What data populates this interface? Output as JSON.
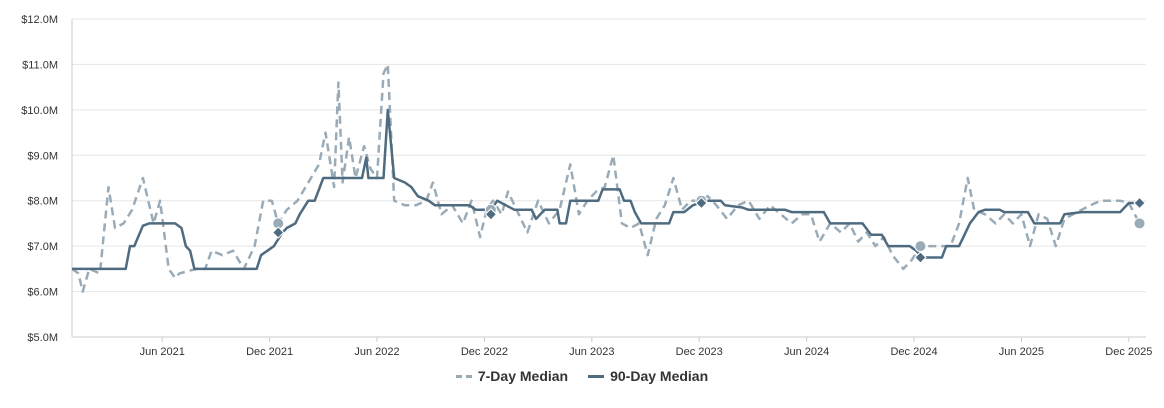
{
  "chart_data": {
    "type": "line",
    "title": "",
    "xlabel": "",
    "ylabel": "",
    "ylim": [
      5.0,
      12.0
    ],
    "xlim": [
      2021.0,
      2026.0
    ],
    "y_ticks": [
      {
        "value": 5,
        "label": "$5.0M"
      },
      {
        "value": 6,
        "label": "$6.0M"
      },
      {
        "value": 7,
        "label": "$7.0M"
      },
      {
        "value": 8,
        "label": "$8.0M"
      },
      {
        "value": 9,
        "label": "$9.0M"
      },
      {
        "value": 10,
        "label": "$10.0M"
      },
      {
        "value": 11,
        "label": "$11.0M"
      },
      {
        "value": 12,
        "label": "$12.0M"
      }
    ],
    "x_ticks": [
      {
        "value": 2021.42,
        "label": "Jun 2021"
      },
      {
        "value": 2021.92,
        "label": "Dec 2021"
      },
      {
        "value": 2022.42,
        "label": "Jun 2022"
      },
      {
        "value": 2022.92,
        "label": "Dec 2022"
      },
      {
        "value": 2023.42,
        "label": "Jun 2023"
      },
      {
        "value": 2023.92,
        "label": "Dec 2023"
      },
      {
        "value": 2024.42,
        "label": "Jun 2024"
      },
      {
        "value": 2024.92,
        "label": "Dec 2024"
      },
      {
        "value": 2025.42,
        "label": "Jun 2025"
      },
      {
        "value": 2025.92,
        "label": "Dec 2025"
      }
    ],
    "series": [
      {
        "name": "7-Day Median",
        "color": "#9aabb8",
        "dash": true,
        "points": [
          [
            2021.0,
            6.5
          ],
          [
            2021.03,
            6.4
          ],
          [
            2021.05,
            6.0
          ],
          [
            2021.08,
            6.5
          ],
          [
            2021.13,
            6.4
          ],
          [
            2021.17,
            8.3
          ],
          [
            2021.2,
            7.4
          ],
          [
            2021.24,
            7.5
          ],
          [
            2021.28,
            7.8
          ],
          [
            2021.33,
            8.5
          ],
          [
            2021.38,
            7.5
          ],
          [
            2021.41,
            8.0
          ],
          [
            2021.45,
            6.5
          ],
          [
            2021.48,
            6.3
          ],
          [
            2021.5,
            6.4
          ],
          [
            2021.54,
            6.45
          ],
          [
            2021.58,
            6.5
          ],
          [
            2021.62,
            6.5
          ],
          [
            2021.65,
            6.9
          ],
          [
            2021.7,
            6.8
          ],
          [
            2021.75,
            6.9
          ],
          [
            2021.8,
            6.5
          ],
          [
            2021.85,
            7.0
          ],
          [
            2021.89,
            8.0
          ],
          [
            2021.93,
            8.0
          ],
          [
            2021.96,
            7.5
          ],
          [
            2022.0,
            7.8
          ],
          [
            2022.05,
            8.0
          ],
          [
            2022.1,
            8.4
          ],
          [
            2022.15,
            8.8
          ],
          [
            2022.18,
            9.5
          ],
          [
            2022.22,
            8.3
          ],
          [
            2022.24,
            10.6
          ],
          [
            2022.26,
            8.4
          ],
          [
            2022.29,
            9.4
          ],
          [
            2022.32,
            8.5
          ],
          [
            2022.36,
            9.2
          ],
          [
            2022.39,
            8.7
          ],
          [
            2022.42,
            8.5
          ],
          [
            2022.45,
            10.8
          ],
          [
            2022.47,
            11.0
          ],
          [
            2022.5,
            8.0
          ],
          [
            2022.55,
            7.9
          ],
          [
            2022.6,
            7.9
          ],
          [
            2022.65,
            8.0
          ],
          [
            2022.68,
            8.4
          ],
          [
            2022.72,
            7.7
          ],
          [
            2022.77,
            7.9
          ],
          [
            2022.82,
            7.5
          ],
          [
            2022.86,
            8.0
          ],
          [
            2022.9,
            7.2
          ],
          [
            2022.93,
            7.8
          ],
          [
            2022.96,
            8.0
          ],
          [
            2023.0,
            7.7
          ],
          [
            2023.03,
            8.2
          ],
          [
            2023.07,
            7.8
          ],
          [
            2023.12,
            7.3
          ],
          [
            2023.17,
            8.0
          ],
          [
            2023.22,
            7.5
          ],
          [
            2023.27,
            7.8
          ],
          [
            2023.32,
            8.8
          ],
          [
            2023.36,
            7.7
          ],
          [
            2023.4,
            8.0
          ],
          [
            2023.44,
            8.2
          ],
          [
            2023.48,
            8.3
          ],
          [
            2023.52,
            9.0
          ],
          [
            2023.56,
            7.5
          ],
          [
            2023.6,
            7.4
          ],
          [
            2023.64,
            7.5
          ],
          [
            2023.68,
            6.8
          ],
          [
            2023.72,
            7.6
          ],
          [
            2023.76,
            7.9
          ],
          [
            2023.8,
            8.5
          ],
          [
            2023.84,
            7.8
          ],
          [
            2023.88,
            8.0
          ],
          [
            2023.92,
            8.0
          ],
          [
            2023.96,
            8.1
          ],
          [
            2024.0,
            7.9
          ],
          [
            2024.05,
            7.6
          ],
          [
            2024.1,
            7.9
          ],
          [
            2024.15,
            8.0
          ],
          [
            2024.2,
            7.6
          ],
          [
            2024.25,
            7.9
          ],
          [
            2024.3,
            7.7
          ],
          [
            2024.35,
            7.5
          ],
          [
            2024.4,
            7.7
          ],
          [
            2024.44,
            7.7
          ],
          [
            2024.48,
            7.1
          ],
          [
            2024.53,
            7.5
          ],
          [
            2024.58,
            7.3
          ],
          [
            2024.62,
            7.5
          ],
          [
            2024.66,
            7.1
          ],
          [
            2024.7,
            7.3
          ],
          [
            2024.74,
            7.0
          ],
          [
            2024.78,
            7.2
          ],
          [
            2024.82,
            6.8
          ],
          [
            2024.87,
            6.5
          ],
          [
            2024.91,
            6.7
          ],
          [
            2024.95,
            7.0
          ],
          [
            2025.0,
            7.0
          ],
          [
            2025.05,
            7.0
          ],
          [
            2025.09,
            7.0
          ],
          [
            2025.13,
            7.5
          ],
          [
            2025.17,
            8.5
          ],
          [
            2025.2,
            7.8
          ],
          [
            2025.25,
            7.7
          ],
          [
            2025.3,
            7.5
          ],
          [
            2025.34,
            7.7
          ],
          [
            2025.38,
            7.5
          ],
          [
            2025.42,
            7.7
          ],
          [
            2025.46,
            7.0
          ],
          [
            2025.5,
            7.7
          ],
          [
            2025.54,
            7.6
          ],
          [
            2025.58,
            7.0
          ],
          [
            2025.62,
            7.6
          ],
          [
            2025.66,
            7.7
          ],
          [
            2025.7,
            7.8
          ],
          [
            2025.74,
            7.9
          ],
          [
            2025.79,
            8.0
          ],
          [
            2025.84,
            8.0
          ],
          [
            2025.88,
            8.0
          ],
          [
            2025.92,
            7.95
          ],
          [
            2025.97,
            7.5
          ]
        ]
      },
      {
        "name": "90-Day Median",
        "color": "#4f6b80",
        "dash": false,
        "points": [
          [
            2021.0,
            6.5
          ],
          [
            2021.25,
            6.5
          ],
          [
            2021.27,
            7.0
          ],
          [
            2021.29,
            7.0
          ],
          [
            2021.33,
            7.45
          ],
          [
            2021.36,
            7.5
          ],
          [
            2021.48,
            7.5
          ],
          [
            2021.51,
            7.4
          ],
          [
            2021.53,
            7.0
          ],
          [
            2021.55,
            6.9
          ],
          [
            2021.57,
            6.5
          ],
          [
            2021.6,
            6.5
          ],
          [
            2021.64,
            6.5
          ],
          [
            2021.86,
            6.5
          ],
          [
            2021.88,
            6.8
          ],
          [
            2021.91,
            6.9
          ],
          [
            2021.94,
            7.0
          ],
          [
            2021.98,
            7.3
          ],
          [
            2022.0,
            7.4
          ],
          [
            2022.04,
            7.5
          ],
          [
            2022.06,
            7.7
          ],
          [
            2022.1,
            8.0
          ],
          [
            2022.13,
            8.0
          ],
          [
            2022.17,
            8.5
          ],
          [
            2022.35,
            8.5
          ],
          [
            2022.37,
            8.95
          ],
          [
            2022.38,
            8.5
          ],
          [
            2022.42,
            8.5
          ],
          [
            2022.45,
            8.5
          ],
          [
            2022.47,
            10.0
          ],
          [
            2022.5,
            8.5
          ],
          [
            2022.55,
            8.4
          ],
          [
            2022.58,
            8.3
          ],
          [
            2022.61,
            8.1
          ],
          [
            2022.66,
            8.0
          ],
          [
            2022.69,
            7.9
          ],
          [
            2022.85,
            7.9
          ],
          [
            2022.88,
            7.8
          ],
          [
            2022.93,
            7.8
          ],
          [
            2022.95,
            7.8
          ],
          [
            2022.98,
            8.0
          ],
          [
            2023.02,
            7.9
          ],
          [
            2023.06,
            7.8
          ],
          [
            2023.14,
            7.8
          ],
          [
            2023.16,
            7.6
          ],
          [
            2023.2,
            7.8
          ],
          [
            2023.26,
            7.8
          ],
          [
            2023.27,
            7.5
          ],
          [
            2023.3,
            7.5
          ],
          [
            2023.32,
            8.0
          ],
          [
            2023.45,
            8.0
          ],
          [
            2023.47,
            8.25
          ],
          [
            2023.55,
            8.25
          ],
          [
            2023.57,
            8.0
          ],
          [
            2023.6,
            8.0
          ],
          [
            2023.62,
            7.75
          ],
          [
            2023.65,
            7.5
          ],
          [
            2023.78,
            7.5
          ],
          [
            2023.8,
            7.75
          ],
          [
            2023.85,
            7.75
          ],
          [
            2023.89,
            7.9
          ],
          [
            2023.95,
            8.0
          ],
          [
            2024.02,
            8.0
          ],
          [
            2024.04,
            7.9
          ],
          [
            2024.12,
            7.85
          ],
          [
            2024.15,
            7.8
          ],
          [
            2024.32,
            7.8
          ],
          [
            2024.35,
            7.75
          ],
          [
            2024.5,
            7.75
          ],
          [
            2024.53,
            7.5
          ],
          [
            2024.68,
            7.5
          ],
          [
            2024.72,
            7.25
          ],
          [
            2024.77,
            7.25
          ],
          [
            2024.8,
            7.0
          ],
          [
            2024.9,
            7.0
          ],
          [
            2024.93,
            6.9
          ],
          [
            2024.96,
            6.75
          ],
          [
            2025.05,
            6.75
          ],
          [
            2025.07,
            7.0
          ],
          [
            2025.13,
            7.0
          ],
          [
            2025.15,
            7.2
          ],
          [
            2025.18,
            7.5
          ],
          [
            2025.22,
            7.75
          ],
          [
            2025.25,
            7.8
          ],
          [
            2025.32,
            7.8
          ],
          [
            2025.34,
            7.75
          ],
          [
            2025.45,
            7.75
          ],
          [
            2025.48,
            7.5
          ],
          [
            2025.6,
            7.5
          ],
          [
            2025.62,
            7.7
          ],
          [
            2025.7,
            7.75
          ],
          [
            2025.88,
            7.75
          ],
          [
            2025.92,
            7.95
          ],
          [
            2025.97,
            7.95
          ]
        ]
      }
    ],
    "markers": [
      {
        "series": "7-Day Median",
        "shape": "circle",
        "x": 2021.96,
        "y": 7.5
      },
      {
        "series": "7-Day Median",
        "shape": "circle",
        "x": 2022.95,
        "y": 7.8
      },
      {
        "series": "7-Day Median",
        "shape": "circle",
        "x": 2023.93,
        "y": 8.0
      },
      {
        "series": "7-Day Median",
        "shape": "circle",
        "x": 2024.95,
        "y": 7.0
      },
      {
        "series": "7-Day Median",
        "shape": "circle",
        "x": 2025.97,
        "y": 7.5
      },
      {
        "series": "90-Day Median",
        "shape": "diamond",
        "x": 2021.96,
        "y": 7.3
      },
      {
        "series": "90-Day Median",
        "shape": "diamond",
        "x": 2022.95,
        "y": 7.7
      },
      {
        "series": "90-Day Median",
        "shape": "diamond",
        "x": 2023.93,
        "y": 7.95
      },
      {
        "series": "90-Day Median",
        "shape": "diamond",
        "x": 2024.95,
        "y": 6.75
      },
      {
        "series": "90-Day Median",
        "shape": "diamond",
        "x": 2025.97,
        "y": 7.95
      }
    ],
    "legend": [
      {
        "label": "7-Day Median",
        "color": "#9aabb8",
        "dash": true
      },
      {
        "label": "90-Day Median",
        "color": "#4f6b80",
        "dash": false
      }
    ],
    "legend_position": "bottom-center",
    "grid": true
  }
}
